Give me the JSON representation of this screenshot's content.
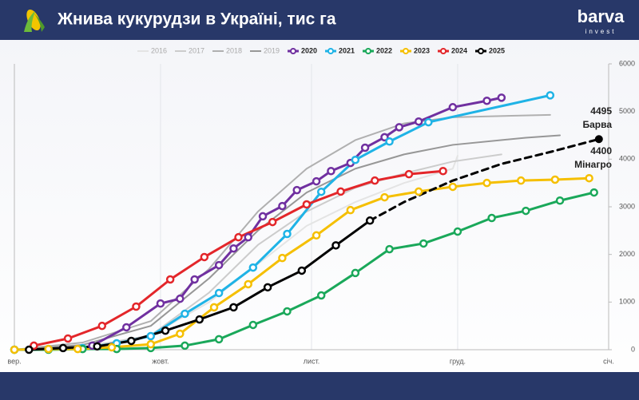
{
  "header": {
    "title": "Жнива кукурудзи в Україні, тис га",
    "logo": "barva",
    "logo_sub": "invest"
  },
  "chart_data": {
    "type": "line",
    "xlim": [
      0,
      122
    ],
    "ylim": [
      0,
      6000
    ],
    "xticks": [
      {
        "value": 0,
        "label": "вер."
      },
      {
        "value": 30,
        "label": "жовт."
      },
      {
        "value": 61,
        "label": "лист."
      },
      {
        "value": 91,
        "label": "груд."
      },
      {
        "value": 122,
        "label": "січ."
      }
    ],
    "yticks": [
      0,
      1000,
      2000,
      3000,
      4000,
      5000,
      6000
    ],
    "grid": true,
    "series": [
      {
        "name": "2016",
        "color": "#e4e4e4",
        "markers": false,
        "x": [
          0,
          14,
          28,
          40,
          50,
          60,
          70,
          80,
          90,
          91
        ],
        "values": [
          0,
          50,
          300,
          1000,
          1800,
          2600,
          3100,
          3500,
          3800,
          4070
        ]
      },
      {
        "name": "2017",
        "color": "#cccccc",
        "markers": false,
        "x": [
          0,
          14,
          28,
          40,
          50,
          60,
          70,
          80,
          90,
          100
        ],
        "values": [
          0,
          50,
          300,
          1200,
          2200,
          2900,
          3400,
          3700,
          3950,
          4100
        ]
      },
      {
        "name": "2018",
        "color": "#b0b0b0",
        "markers": false,
        "x": [
          0,
          14,
          28,
          40,
          50,
          60,
          70,
          80,
          90,
          110
        ],
        "values": [
          0,
          150,
          600,
          1700,
          2900,
          3800,
          4400,
          4750,
          4880,
          4930
        ]
      },
      {
        "name": "2019",
        "color": "#979797",
        "markers": false,
        "x": [
          0,
          14,
          28,
          40,
          50,
          60,
          70,
          80,
          90,
          105,
          112
        ],
        "values": [
          0,
          100,
          500,
          1500,
          2500,
          3300,
          3800,
          4100,
          4300,
          4450,
          4500
        ]
      },
      {
        "name": "2020",
        "color": "#7030a0",
        "markers": true,
        "x": [
          16,
          23,
          30,
          34,
          37,
          42,
          45,
          48,
          51,
          55,
          58,
          62,
          65,
          69,
          72,
          76,
          79,
          83,
          90,
          97,
          100
        ],
        "values": [
          85,
          470,
          970,
          1070,
          1475,
          1775,
          2125,
          2360,
          2800,
          3015,
          3350,
          3535,
          3750,
          3920,
          4240,
          4460,
          4670,
          4790,
          5090,
          5225,
          5290
        ]
      },
      {
        "name": "2021",
        "color": "#1fb3e6",
        "markers": true,
        "x": [
          0,
          7,
          14,
          21,
          28,
          35,
          42,
          49,
          56,
          63,
          70,
          77,
          85,
          110
        ],
        "values": [
          0,
          15,
          35,
          135,
          285,
          755,
          1190,
          1725,
          2430,
          3315,
          3985,
          4370,
          4775,
          5340
        ]
      },
      {
        "name": "2022",
        "color": "#1aa85a",
        "markers": true,
        "x": [
          0,
          7,
          14,
          21,
          28,
          35,
          42,
          49,
          56,
          63,
          70,
          77,
          84,
          91,
          98,
          105,
          112,
          119
        ],
        "values": [
          0,
          0,
          15,
          15,
          35,
          85,
          220,
          520,
          805,
          1140,
          1610,
          2110,
          2230,
          2480,
          2765,
          2915,
          3130,
          3300
        ]
      },
      {
        "name": "2023",
        "color": "#f5bf00",
        "markers": true,
        "x": [
          0,
          7,
          13,
          20,
          28,
          34,
          41,
          48,
          55,
          62,
          69,
          76,
          83,
          90,
          97,
          104,
          111,
          118
        ],
        "values": [
          0,
          15,
          15,
          50,
          115,
          335,
          890,
          1375,
          1925,
          2400,
          2930,
          3200,
          3320,
          3420,
          3500,
          3550,
          3570,
          3600
        ]
      },
      {
        "name": "2024",
        "color": "#e3262a",
        "markers": true,
        "x": [
          4,
          11,
          18,
          25,
          32,
          39,
          46,
          53,
          60,
          67,
          74,
          81,
          88
        ],
        "values": [
          85,
          235,
          500,
          905,
          1475,
          1945,
          2360,
          2680,
          3050,
          3320,
          3550,
          3685,
          3750
        ]
      },
      {
        "name": "2025",
        "color": "#000000",
        "markers": true,
        "x": [
          3,
          10,
          17,
          24,
          31,
          38,
          45,
          52,
          59,
          66,
          73
        ],
        "values": [
          0,
          35,
          70,
          185,
          400,
          635,
          890,
          1310,
          1660,
          2190,
          2710
        ]
      }
    ],
    "forecast": {
      "color": "#000000",
      "x": [
        73,
        80,
        90,
        100,
        110,
        120
      ],
      "values": [
        2710,
        3100,
        3550,
        3900,
        4150,
        4420
      ]
    },
    "annotations": [
      {
        "value": "4495",
        "text": "Барва"
      },
      {
        "value": "4400",
        "text": "Мінагро"
      }
    ]
  }
}
